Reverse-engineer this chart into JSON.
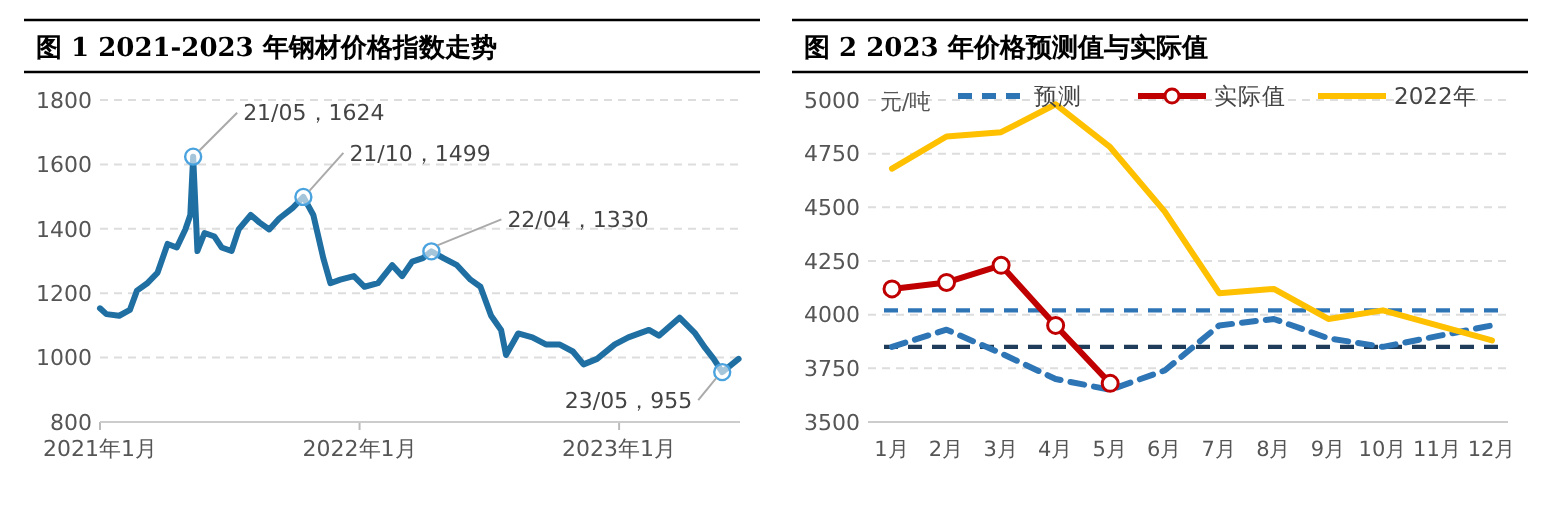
{
  "chart_data": [
    {
      "type": "line",
      "title": "图 1 2021-2023 年钢材价格指数走势",
      "xlim": [
        "2021-01-01",
        "2023-06-20"
      ],
      "xticks": [
        {
          "value": "2021-01-01",
          "label": "2021年1月"
        },
        {
          "value": "2022-01-01",
          "label": "2022年1月"
        },
        {
          "value": "2023-01-01",
          "label": "2023年1月"
        }
      ],
      "ylim": [
        800,
        1800
      ],
      "yticks": [
        800,
        1000,
        1200,
        1400,
        1600,
        1800
      ],
      "grid": "y",
      "series": [
        {
          "color": "#1f6fa3",
          "x": [
            "2021-01-01",
            "2021-01-10",
            "2021-01-28",
            "2021-02-12",
            "2021-02-22",
            "2021-03-08",
            "2021-03-23",
            "2021-04-06",
            "2021-04-19",
            "2021-05-01",
            "2021-05-08",
            "2021-05-12",
            "2021-05-18",
            "2021-05-28",
            "2021-06-11",
            "2021-06-21",
            "2021-07-05",
            "2021-07-15",
            "2021-08-01",
            "2021-08-13",
            "2021-08-27",
            "2021-09-10",
            "2021-09-29",
            "2021-10-14",
            "2021-10-28",
            "2021-11-11",
            "2021-11-21",
            "2021-12-05",
            "2021-12-24",
            "2022-01-08",
            "2022-01-27",
            "2022-02-16",
            "2022-03-02",
            "2022-03-16",
            "2022-03-31",
            "2022-04-12",
            "2022-04-29",
            "2022-05-18",
            "2022-06-06",
            "2022-06-20",
            "2022-07-05",
            "2022-07-19",
            "2022-07-26",
            "2022-08-12",
            "2022-09-01",
            "2022-09-20",
            "2022-10-09",
            "2022-10-28",
            "2022-11-12",
            "2022-12-01",
            "2022-12-26",
            "2023-01-14",
            "2023-02-12",
            "2023-02-26",
            "2023-03-27",
            "2023-04-18",
            "2023-05-02",
            "2023-05-14",
            "2023-05-26",
            "2023-06-18"
          ],
          "values": [
            1153,
            1135,
            1130,
            1148,
            1208,
            1230,
            1264,
            1353,
            1342,
            1398,
            1443,
            1624,
            1331,
            1387,
            1376,
            1342,
            1331,
            1398,
            1443,
            1420,
            1398,
            1432,
            1465,
            1499,
            1443,
            1309,
            1231,
            1242,
            1253,
            1220,
            1231,
            1287,
            1253,
            1298,
            1309,
            1330,
            1309,
            1287,
            1242,
            1220,
            1130,
            1086,
            1008,
            1075,
            1063,
            1041,
            1041,
            1019,
            979,
            996,
            1041,
            1063,
            1086,
            1068,
            1124,
            1075,
            1030,
            996,
            955,
            996
          ]
        }
      ],
      "annotations": [
        {
          "text": "21/05，1624",
          "x": "2021-05-12",
          "y": 1624
        },
        {
          "text": "21/10，1499",
          "x": "2021-10-14",
          "y": 1499
        },
        {
          "text": "22/04，1330",
          "x": "2022-04-12",
          "y": 1330
        },
        {
          "text": "23/05，955",
          "x": "2023-05-26",
          "y": 955
        }
      ]
    },
    {
      "type": "line",
      "title": "图 2 2023 年价格预测值与实际值",
      "ylabel": "元/吨",
      "categories": [
        "1月",
        "2月",
        "3月",
        "4月",
        "5月",
        "6月",
        "7月",
        "8月",
        "9月",
        "10月",
        "11月",
        "12月"
      ],
      "ylim": [
        3500,
        5000
      ],
      "yticks": [
        3500,
        3750,
        4000,
        4250,
        4500,
        4750,
        5000
      ],
      "grid": "y",
      "legend": "top",
      "series": [
        {
          "name": "预测",
          "color": "#2e75b6",
          "line_style": "dashed",
          "marker": "none",
          "values": [
            3850,
            3930,
            3820,
            3700,
            3650,
            3740,
            3950,
            3980,
            3890,
            3850,
            3900,
            3950
          ]
        },
        {
          "name": "实际值",
          "color": "#c00000",
          "line_style": "solid",
          "marker": "circle",
          "values": [
            4120,
            4150,
            4230,
            3950,
            3680,
            null,
            null,
            null,
            null,
            null,
            null,
            null
          ]
        },
        {
          "name": "2022年",
          "color": "#ffc000",
          "line_style": "solid",
          "marker": "none",
          "values": [
            4680,
            4830,
            4850,
            4980,
            4780,
            4480,
            4100,
            4120,
            3980,
            4020,
            3950,
            3880
          ]
        }
      ],
      "ref_lines": [
        {
          "axis": "y",
          "value": 4020,
          "color": "#2e75b6",
          "line_style": "dashed"
        },
        {
          "axis": "y",
          "value": 3850,
          "color": "#1f3d5a",
          "line_style": "dashed"
        }
      ]
    }
  ]
}
